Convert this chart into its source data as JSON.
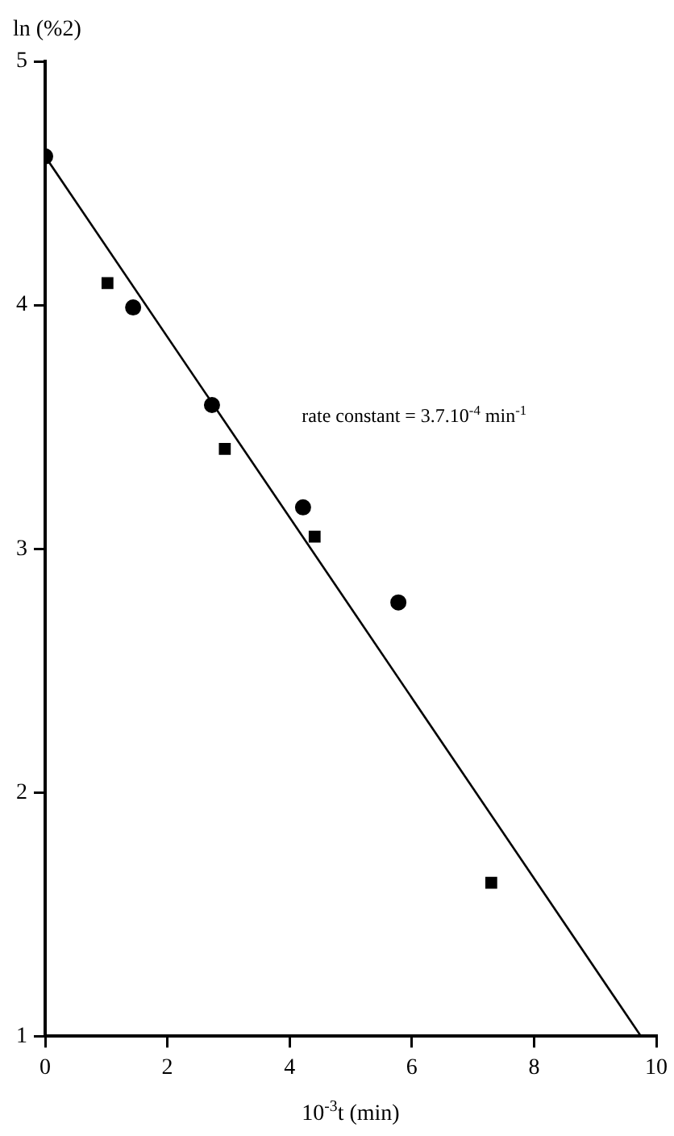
{
  "chart_data": {
    "type": "scatter",
    "ylabel": "ln (%2)",
    "xlabel": "10$^{-3}$t (min)",
    "annotations": [
      "rate constant = 3.7.10$^{-4}$ min$^{-1}$"
    ],
    "xlim": [
      0,
      10
    ],
    "xticks": [
      0,
      2,
      4,
      6,
      8,
      10
    ],
    "ylim": [
      1,
      5
    ],
    "yticks": [
      1,
      2,
      3,
      4,
      5
    ],
    "grid": false,
    "legend": false,
    "series": [
      {
        "type": "scatter",
        "marker": "circle",
        "color": "#000000",
        "x": [
          0,
          1.44,
          2.73,
          4.22,
          5.78
        ],
        "values": [
          4.61,
          3.99,
          3.59,
          3.17,
          2.78
        ]
      },
      {
        "type": "scatter",
        "marker": "square",
        "color": "#000000",
        "x": [
          1.02,
          2.94,
          4.41,
          7.3
        ],
        "values": [
          4.09,
          3.41,
          3.05,
          1.63
        ]
      },
      {
        "type": "line",
        "marker": "none",
        "color": "#000000",
        "x": [
          0,
          9.75
        ],
        "values": [
          4.61,
          1.0
        ]
      }
    ]
  }
}
